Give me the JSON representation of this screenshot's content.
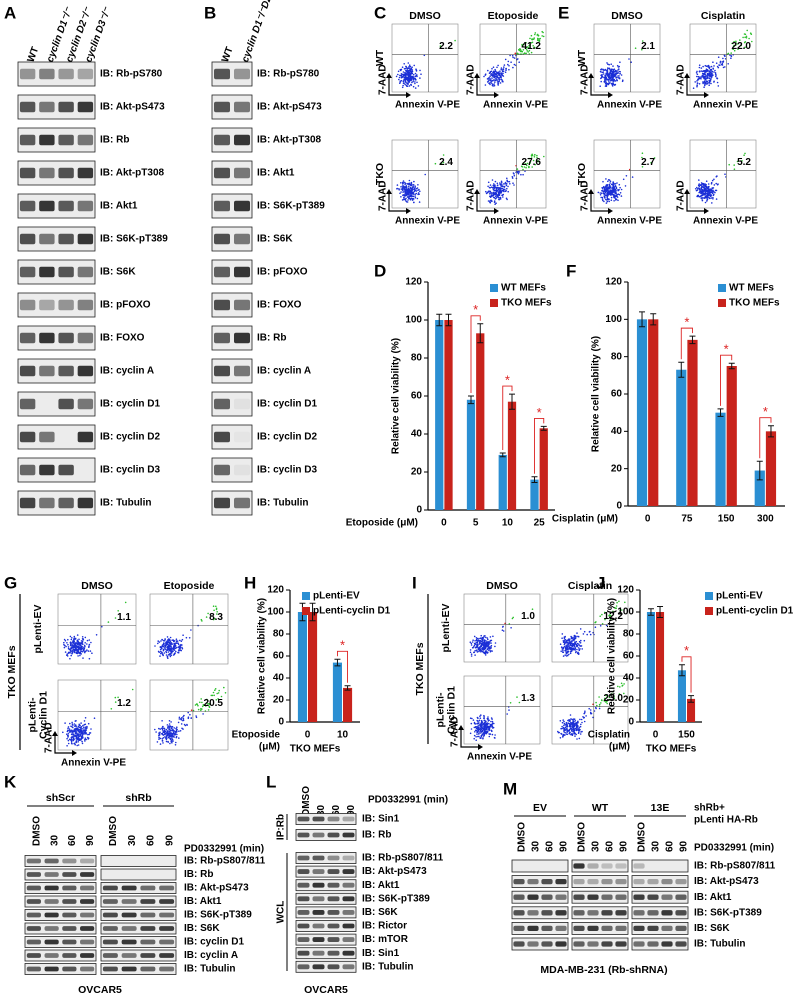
{
  "panels": {
    "A": {
      "letter": "A",
      "lanes": [
        "WT",
        "cyclin D1⁻/⁻",
        "cyclin D2⁻/⁻",
        "cyclin D3⁻/⁻"
      ],
      "blots": [
        "IB: Rb-pS780",
        "IB: Akt-pS473",
        "IB: Rb",
        "IB: Akt-pT308",
        "IB: Akt1",
        "IB: S6K-pT389",
        "IB: S6K",
        "IB: pFOXO",
        "IB: FOXO",
        "IB: cyclin A",
        "IB: cyclin D1",
        "IB: cyclin D2",
        "IB: cyclin D3",
        "IB: Tubulin"
      ]
    },
    "B": {
      "letter": "B",
      "lanes": [
        "WT",
        "cyclin D1⁻/⁻D2⁻/⁻D3⁻/⁻"
      ],
      "blots": [
        "IB: Rb-pS780",
        "IB: Akt-pS473",
        "IB: Akt-pT308",
        "IB: Akt1",
        "IB: S6K-pT389",
        "IB: S6K",
        "IB: pFOXO",
        "IB: FOXO",
        "IB: Rb",
        "IB: cyclin A",
        "IB: cyclin D1",
        "IB: cyclin D2",
        "IB: cyclin D3",
        "IB: Tubulin"
      ]
    },
    "C": {
      "letter": "C",
      "columns": [
        "DMSO",
        "Etoposide"
      ],
      "rows": [
        [
          "WT"
        ],
        [
          "TKO"
        ]
      ],
      "percentages": [
        [
          "2.2",
          "41.2"
        ],
        [
          "2.4",
          "27.6"
        ]
      ],
      "y_axis": "7-AAD",
      "x_axis": "Annexin V-PE"
    },
    "E": {
      "letter": "E",
      "columns": [
        "DMSO",
        "Cisplatin"
      ],
      "rows": [
        [
          "WT"
        ],
        [
          "TKO"
        ]
      ],
      "percentages": [
        [
          "2.1",
          "22.0"
        ],
        [
          "2.7",
          "5.2"
        ]
      ],
      "y_axis": "7-AAD",
      "x_axis": "Annexin V-PE"
    },
    "G": {
      "letter": "G",
      "side_label": "TKO MEFs",
      "columns": [
        "DMSO",
        "Etoposide"
      ],
      "rows": [
        [
          "pLenti-EV"
        ],
        [
          "pLenti-",
          "Cyclin D1"
        ]
      ],
      "percentages": [
        [
          "1.1",
          "8.3"
        ],
        [
          "1.2",
          "20.5"
        ]
      ],
      "y_axis": "7-AAD",
      "x_axis": "Annexin V-PE"
    },
    "I": {
      "letter": "I",
      "side_label": "TKO MEFs",
      "columns": [
        "DMSO",
        "Cisplatin"
      ],
      "rows": [
        [
          "pLenti-EV"
        ],
        [
          "pLenti-",
          "Cyclin D1"
        ]
      ],
      "percentages": [
        [
          "1.0",
          "12.2"
        ],
        [
          "1.3",
          "23.0"
        ]
      ],
      "y_axis": "7-AAD",
      "x_axis": "Annexin V-PE"
    },
    "K": {
      "letter": "K",
      "groups": [
        "shScr",
        "shRb"
      ],
      "lanes": [
        "DMSO",
        "30",
        "60",
        "90",
        "DMSO",
        "30",
        "60",
        "90"
      ],
      "treatment": "PD0332991 (min)",
      "blots": [
        "IB: Rb-pS807/811",
        "IB: Rb",
        "IB: Akt-pS473",
        "IB: Akt1",
        "IB: S6K-pT389",
        "IB: S6K",
        "IB: cyclin D1",
        "IB: cyclin A",
        "IB: Tubulin"
      ],
      "cell_line": "OVCAR5"
    },
    "L": {
      "letter": "L",
      "lanes": [
        "DMSO",
        "30",
        "60",
        "90"
      ],
      "treatment": "PD0332991 (min)",
      "sections": [
        "IP:Rb",
        "WCL"
      ],
      "blots": [
        "IB: Sin1",
        "IB: Rb",
        "IB: Rb-pS807/811",
        "IB: Akt-pS473",
        "IB: Akt1",
        "IB: S6K-pT389",
        "IB: S6K",
        "IB: Rictor",
        "IB: mTOR",
        "IB: Sin1",
        "IB: Tubulin"
      ],
      "cell_line": "OVCAR5"
    },
    "M": {
      "letter": "M",
      "groups": [
        "EV",
        "WT",
        "13E"
      ],
      "lanes": [
        "DMSO",
        "30",
        "60",
        "90",
        "DMSO",
        "30",
        "60",
        "90",
        "DMSO",
        "30",
        "60",
        "90"
      ],
      "construct": [
        "shRb+",
        "pLenti HA-Rb"
      ],
      "treatment": "PD0332991 (min)",
      "blots": [
        "IB: Rb-pS807/811",
        "IB: Akt-pS473",
        "IB: Akt1",
        "IB: S6K-pT389",
        "IB: S6K",
        "IB: Tubulin"
      ],
      "cell_line": "MDA-MB-231 (Rb-shRNA)"
    }
  },
  "chart_data": [
    {
      "panel": "D",
      "type": "bar",
      "ylabel": "Relative cell viability (%)",
      "xlabel": "Etoposide (μM)",
      "categories": [
        "0",
        "5",
        "10",
        "25"
      ],
      "series": [
        {
          "name": "WT MEFs",
          "color": "#2b8fd3",
          "values": [
            100,
            58,
            29,
            16
          ],
          "errors": [
            3,
            2,
            1,
            1.5
          ]
        },
        {
          "name": "TKO MEFs",
          "color": "#c8231c",
          "values": [
            100,
            93,
            57,
            43
          ],
          "errors": [
            3,
            5,
            4,
            1
          ]
        }
      ],
      "ylim": [
        0,
        120
      ],
      "yticks": [
        0,
        20,
        40,
        60,
        80,
        100,
        120
      ],
      "significance": [
        "*",
        "*",
        "*"
      ],
      "legend": "upper right"
    },
    {
      "panel": "F",
      "type": "bar",
      "ylabel": "Relative cell viability (%)",
      "xlabel": "Cisplatin (μM)",
      "categories": [
        "0",
        "75",
        "150",
        "300"
      ],
      "series": [
        {
          "name": "WT MEFs",
          "color": "#2b8fd3",
          "values": [
            100,
            73,
            50,
            19
          ],
          "errors": [
            4,
            4,
            2,
            5
          ]
        },
        {
          "name": "TKO MEFs",
          "color": "#c8231c",
          "values": [
            100,
            89,
            75,
            40
          ],
          "errors": [
            3,
            2,
            1.5,
            3
          ]
        }
      ],
      "ylim": [
        0,
        120
      ],
      "yticks": [
        0,
        20,
        40,
        60,
        80,
        100,
        120
      ],
      "significance": [
        "*",
        "*",
        "*"
      ],
      "legend": "upper right"
    },
    {
      "panel": "H",
      "type": "bar",
      "ylabel": "Relative cell viability (%)",
      "xlabel": [
        "Etoposide",
        "(μM)"
      ],
      "subtitle": "TKO MEFs",
      "categories": [
        "0",
        "10"
      ],
      "series": [
        {
          "name": "pLenti-EV",
          "color": "#2b8fd3",
          "values": [
            100,
            54
          ],
          "errors": [
            8,
            3
          ]
        },
        {
          "name": "pLenti-cyclin D1",
          "color": "#c8231c",
          "values": [
            100,
            31
          ],
          "errors": [
            8,
            2
          ]
        }
      ],
      "ylim": [
        0,
        120
      ],
      "yticks": [
        0,
        20,
        40,
        60,
        80,
        100,
        120
      ],
      "significance": [
        "*"
      ],
      "legend": "upper right"
    },
    {
      "panel": "J",
      "type": "bar",
      "ylabel": "Relative cell viability (%)",
      "xlabel": [
        "Cisplatin",
        "(μM)"
      ],
      "subtitle": "TKO MEFs",
      "categories": [
        "0",
        "150"
      ],
      "series": [
        {
          "name": "pLenti-EV",
          "color": "#2b8fd3",
          "values": [
            100,
            47
          ],
          "errors": [
            3,
            5
          ]
        },
        {
          "name": "pLenti-cyclin D1",
          "color": "#c8231c",
          "values": [
            100,
            21
          ],
          "errors": [
            5,
            3
          ]
        }
      ],
      "ylim": [
        0,
        120
      ],
      "yticks": [
        0,
        20,
        40,
        60,
        80,
        100,
        120
      ],
      "significance": [
        "*"
      ],
      "legend": "upper right"
    }
  ]
}
